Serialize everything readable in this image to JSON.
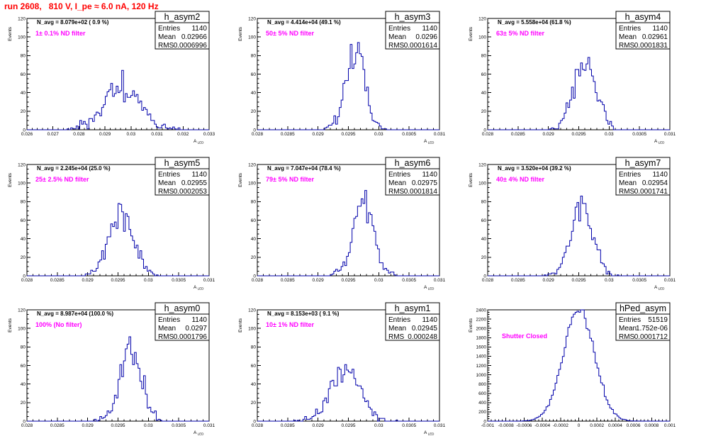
{
  "title": "run 2608,   810 V, I_pe ≈ 6.0 nA, 120 Hz",
  "colors": {
    "histogram": "#0000aa",
    "annotation": "#ff00ff",
    "title": "#ff0000"
  },
  "chart_data": [
    {
      "type": "bar",
      "name": "h_asym2",
      "navg": "N_avg = 8.079e+02 ( 0.9 %)",
      "annotation": "1± 0.1% ND filter",
      "stats": {
        "entries": "1140",
        "mean": "0.02966",
        "rms": "0.0006996"
      },
      "xlim": [
        0.026,
        0.033
      ],
      "ylim": [
        0,
        120
      ],
      "xticks": [
        0.026,
        0.027,
        0.028,
        0.029,
        0.03,
        0.031,
        0.032,
        0.033
      ],
      "xtick_labels": [
        "0.026",
        "0.027",
        "0.028",
        "0.029",
        "0.03",
        "0.031",
        "0.032",
        "0.033"
      ],
      "yticks": [
        0,
        20,
        40,
        60,
        80,
        100,
        120
      ],
      "ylabel": "Events",
      "xlabel": "A_LED",
      "mean": 0.02966,
      "sigma": 0.0007,
      "entries": 1140,
      "nbins": 100,
      "seed": 11
    },
    {
      "type": "bar",
      "name": "h_asym3",
      "navg": "N_avg = 4.414e+04 (49.1 %)",
      "annotation": "50± 5% ND filter",
      "stats": {
        "entries": "1140",
        "mean": "0.0296",
        "rms": "0.0001614"
      },
      "xlim": [
        0.028,
        0.031
      ],
      "ylim": [
        0,
        120
      ],
      "xticks": [
        0.028,
        0.0285,
        0.029,
        0.0295,
        0.03,
        0.0305,
        0.031
      ],
      "xtick_labels": [
        "0.028",
        "0.0285",
        "0.029",
        "0.0295",
        "0.03",
        "0.0305",
        "0.031"
      ],
      "yticks": [
        0,
        20,
        40,
        60,
        80,
        100,
        120
      ],
      "ylabel": "Events",
      "xlabel": "A_LED",
      "mean": 0.0296,
      "sigma": 0.000161,
      "entries": 1140,
      "nbins": 100,
      "seed": 23
    },
    {
      "type": "bar",
      "name": "h_asym4",
      "navg": "N_avg = 5.558e+04 (61.8 %)",
      "annotation": "63± 5% ND filter",
      "stats": {
        "entries": "1140",
        "mean": "0.02961",
        "rms": "0.0001831"
      },
      "xlim": [
        0.028,
        0.031
      ],
      "ylim": [
        0,
        120
      ],
      "xticks": [
        0.028,
        0.0285,
        0.029,
        0.0295,
        0.03,
        0.0305,
        0.031
      ],
      "xtick_labels": [
        "0.028",
        "0.0285",
        "0.029",
        "0.0295",
        "0.03",
        "0.0305",
        "0.031"
      ],
      "yticks": [
        0,
        20,
        40,
        60,
        80,
        100,
        120
      ],
      "ylabel": "Events",
      "xlabel": "A_LED",
      "mean": 0.02961,
      "sigma": 0.000183,
      "entries": 1140,
      "nbins": 100,
      "seed": 37
    },
    {
      "type": "bar",
      "name": "h_asym5",
      "navg": "N_avg = 2.245e+04 (25.0 %)",
      "annotation": "25± 2.5% ND filter",
      "stats": {
        "entries": "1140",
        "mean": "0.02955",
        "rms": "0.0002053"
      },
      "xlim": [
        0.028,
        0.031
      ],
      "ylim": [
        0,
        120
      ],
      "xticks": [
        0.028,
        0.0285,
        0.029,
        0.0295,
        0.03,
        0.0305,
        0.031
      ],
      "xtick_labels": [
        "0.028",
        "0.0285",
        "0.029",
        "0.0295",
        "0.03",
        "0.0305",
        "0.031"
      ],
      "yticks": [
        0,
        20,
        40,
        60,
        80,
        100,
        120
      ],
      "ylabel": "Events",
      "xlabel": "A_LED",
      "mean": 0.02955,
      "sigma": 0.000205,
      "entries": 1140,
      "nbins": 100,
      "seed": 41
    },
    {
      "type": "bar",
      "name": "h_asym6",
      "navg": "N_avg = 7.047e+04 (78.4 %)",
      "annotation": "79± 5% ND filter",
      "stats": {
        "entries": "1140",
        "mean": "0.02975",
        "rms": "0.0001814"
      },
      "xlim": [
        0.028,
        0.031
      ],
      "ylim": [
        0,
        120
      ],
      "xticks": [
        0.028,
        0.0285,
        0.029,
        0.0295,
        0.03,
        0.0305,
        0.031
      ],
      "xtick_labels": [
        "0.028",
        "0.0285",
        "0.029",
        "0.0295",
        "0.03",
        "0.0305",
        "0.031"
      ],
      "yticks": [
        0,
        20,
        40,
        60,
        80,
        100,
        120
      ],
      "ylabel": "Events",
      "xlabel": "A_LED",
      "mean": 0.02975,
      "sigma": 0.000181,
      "entries": 1140,
      "nbins": 100,
      "seed": 53
    },
    {
      "type": "bar",
      "name": "h_asym7",
      "navg": "N_avg = 3.520e+04 (39.2 %)",
      "annotation": "40± 4% ND filter",
      "stats": {
        "entries": "1140",
        "mean": "0.02954",
        "rms": "0.0001741"
      },
      "xlim": [
        0.028,
        0.031
      ],
      "ylim": [
        0,
        120
      ],
      "xticks": [
        0.028,
        0.0285,
        0.029,
        0.0295,
        0.03,
        0.0305,
        0.031
      ],
      "xtick_labels": [
        "0.028",
        "0.0285",
        "0.029",
        "0.0295",
        "0.03",
        "0.0305",
        "0.031"
      ],
      "yticks": [
        0,
        20,
        40,
        60,
        80,
        100,
        120
      ],
      "ylabel": "Events",
      "xlabel": "A_LED",
      "mean": 0.02954,
      "sigma": 0.000174,
      "entries": 1140,
      "nbins": 100,
      "seed": 67
    },
    {
      "type": "bar",
      "name": "h_asym0",
      "navg": "N_avg = 8.987e+04 (100.0 %)",
      "annotation": "100% (No filter)",
      "stats": {
        "entries": "1140",
        "mean": "0.0297",
        "rms": "0.0001796"
      },
      "xlim": [
        0.028,
        0.031
      ],
      "ylim": [
        0,
        120
      ],
      "xticks": [
        0.028,
        0.0285,
        0.029,
        0.0295,
        0.03,
        0.0305,
        0.031
      ],
      "xtick_labels": [
        "0.028",
        "0.0285",
        "0.029",
        "0.0295",
        "0.03",
        "0.0305",
        "0.031"
      ],
      "yticks": [
        0,
        20,
        40,
        60,
        80,
        100,
        120
      ],
      "ylabel": "Events",
      "xlabel": "A_LED",
      "mean": 0.0297,
      "sigma": 0.00018,
      "entries": 1140,
      "nbins": 100,
      "seed": 71
    },
    {
      "type": "bar",
      "name": "h_asym1",
      "navg": "N_avg = 8.153e+03 ( 9.1 %)",
      "annotation": "10± 1% ND filter",
      "stats": {
        "entries": "1140",
        "mean": "0.02945",
        "rms": "0.000248"
      },
      "xlim": [
        0.028,
        0.031
      ],
      "ylim": [
        0,
        120
      ],
      "xticks": [
        0.028,
        0.0285,
        0.029,
        0.0295,
        0.03,
        0.0305,
        0.031
      ],
      "xtick_labels": [
        "0.028",
        "0.0285",
        "0.029",
        "0.0295",
        "0.03",
        "0.0305",
        "0.031"
      ],
      "yticks": [
        0,
        20,
        40,
        60,
        80,
        100,
        120
      ],
      "ylabel": "Events",
      "xlabel": "A_LED",
      "mean": 0.02945,
      "sigma": 0.000248,
      "entries": 1140,
      "nbins": 100,
      "seed": 83
    },
    {
      "type": "bar",
      "name": "hPed_asym",
      "navg": "",
      "annotation": "Shutter Closed",
      "stats": {
        "entries": "51519",
        "mean": "1.752e-06",
        "rms": "0.0001712"
      },
      "xlim": [
        -0.001,
        0.001
      ],
      "ylim": [
        0,
        2400
      ],
      "xticks": [
        -0.001,
        -0.0008,
        -0.0006,
        -0.0004,
        -0.0002,
        0,
        0.0002,
        0.0004,
        0.0006,
        0.0008,
        0.001
      ],
      "xtick_labels": [
        "-0.001",
        "-0.0008",
        "-0.0006",
        "-0.0004",
        "-0.0002",
        "0",
        "0.0002",
        "0.0004",
        "0.0006",
        "0.0008",
        "0.001"
      ],
      "yticks": [
        0,
        200,
        400,
        600,
        800,
        1000,
        1200,
        1400,
        1600,
        1800,
        2000,
        2200,
        2400
      ],
      "ylabel": "Events",
      "xlabel": "",
      "mean": 1.752e-06,
      "sigma": 0.000171,
      "entries": 51519,
      "nbins": 100,
      "seed": 97
    }
  ]
}
